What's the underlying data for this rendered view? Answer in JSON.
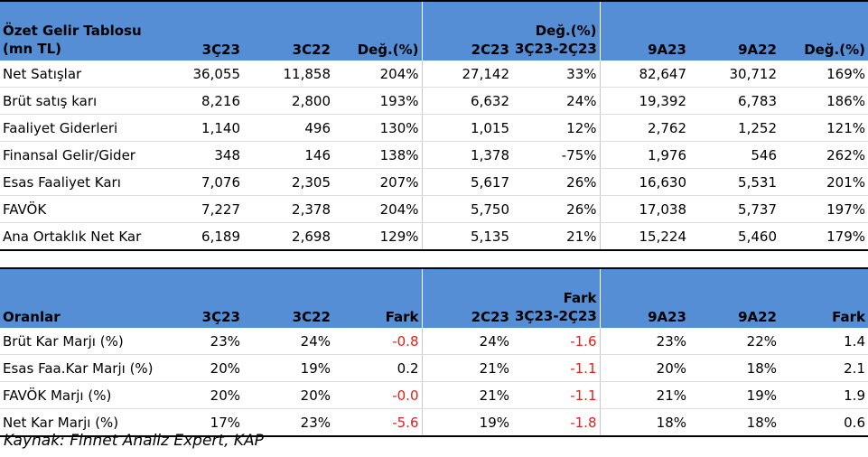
{
  "income_table": {
    "header": {
      "title_line1": "Özet Gelir Tablosu",
      "title_line2": "(mn TL)",
      "col1": "3Ç23",
      "col2": "3C22",
      "col3": "Değ.(%)",
      "col4": "2C23",
      "col5_line1": "Değ.(%)",
      "col5_line2": "3Ç23-2Ç23",
      "col6": "9A23",
      "col7": "9A22",
      "col8": "Değ.(%)"
    },
    "rows": [
      {
        "label": "Net Satışlar",
        "v": [
          "36,055",
          "11,858",
          "204%",
          "27,142",
          "33%",
          "82,647",
          "30,712",
          "169%"
        ]
      },
      {
        "label": "Brüt satış karı",
        "v": [
          "8,216",
          "2,800",
          "193%",
          "6,632",
          "24%",
          "19,392",
          "6,783",
          "186%"
        ]
      },
      {
        "label": "Faaliyet Giderleri",
        "v": [
          "1,140",
          "496",
          "130%",
          "1,015",
          "12%",
          "2,762",
          "1,252",
          "121%"
        ]
      },
      {
        "label": "Finansal Gelir/Gider",
        "v": [
          "348",
          "146",
          "138%",
          "1,378",
          "-75%",
          "1,976",
          "546",
          "262%"
        ]
      },
      {
        "label": "Esas Faaliyet Karı",
        "v": [
          "7,076",
          "2,305",
          "207%",
          "5,617",
          "26%",
          "16,630",
          "5,531",
          "201%"
        ]
      },
      {
        "label": "FAVÖK",
        "v": [
          "7,227",
          "2,378",
          "204%",
          "5,750",
          "26%",
          "17,038",
          "5,737",
          "197%"
        ]
      },
      {
        "label": "Ana Ortaklık Net Kar",
        "v": [
          "6,189",
          "2,698",
          "129%",
          "5,135",
          "21%",
          "15,224",
          "5,460",
          "179%"
        ]
      }
    ]
  },
  "ratio_table": {
    "header": {
      "title": "Oranlar",
      "col1": "3Ç23",
      "col2": "3C22",
      "col3": "Fark",
      "col4": "2C23",
      "col5_line1": "Fark",
      "col5_line2": "3Ç23-2Ç23",
      "col6": "9A23",
      "col7": "9A22",
      "col8": "Fark"
    },
    "rows": [
      {
        "label": "Brüt Kar Marjı (%)",
        "v": [
          "23%",
          "24%",
          "-0.8",
          "24%",
          "-1.6",
          "23%",
          "22%",
          "1.4"
        ]
      },
      {
        "label": "Esas Faa.Kar Marjı (%)",
        "v": [
          "20%",
          "19%",
          "0.2",
          "21%",
          "-1.1",
          "20%",
          "18%",
          "2.1"
        ]
      },
      {
        "label": "FAVÖK Marjı (%)",
        "v": [
          "20%",
          "20%",
          "-0.0",
          "21%",
          "-1.1",
          "21%",
          "19%",
          "1.9"
        ]
      },
      {
        "label": "Net Kar Marjı (%)",
        "v": [
          "17%",
          "23%",
          "-5.6",
          "19%",
          "-1.8",
          "18%",
          "18%",
          "0.6"
        ]
      }
    ]
  },
  "source_note": "Kaynak: Finnet Analiz Expert, KAP",
  "colors": {
    "header_bg": "#558ed5",
    "negative_text": "#e0201c"
  }
}
